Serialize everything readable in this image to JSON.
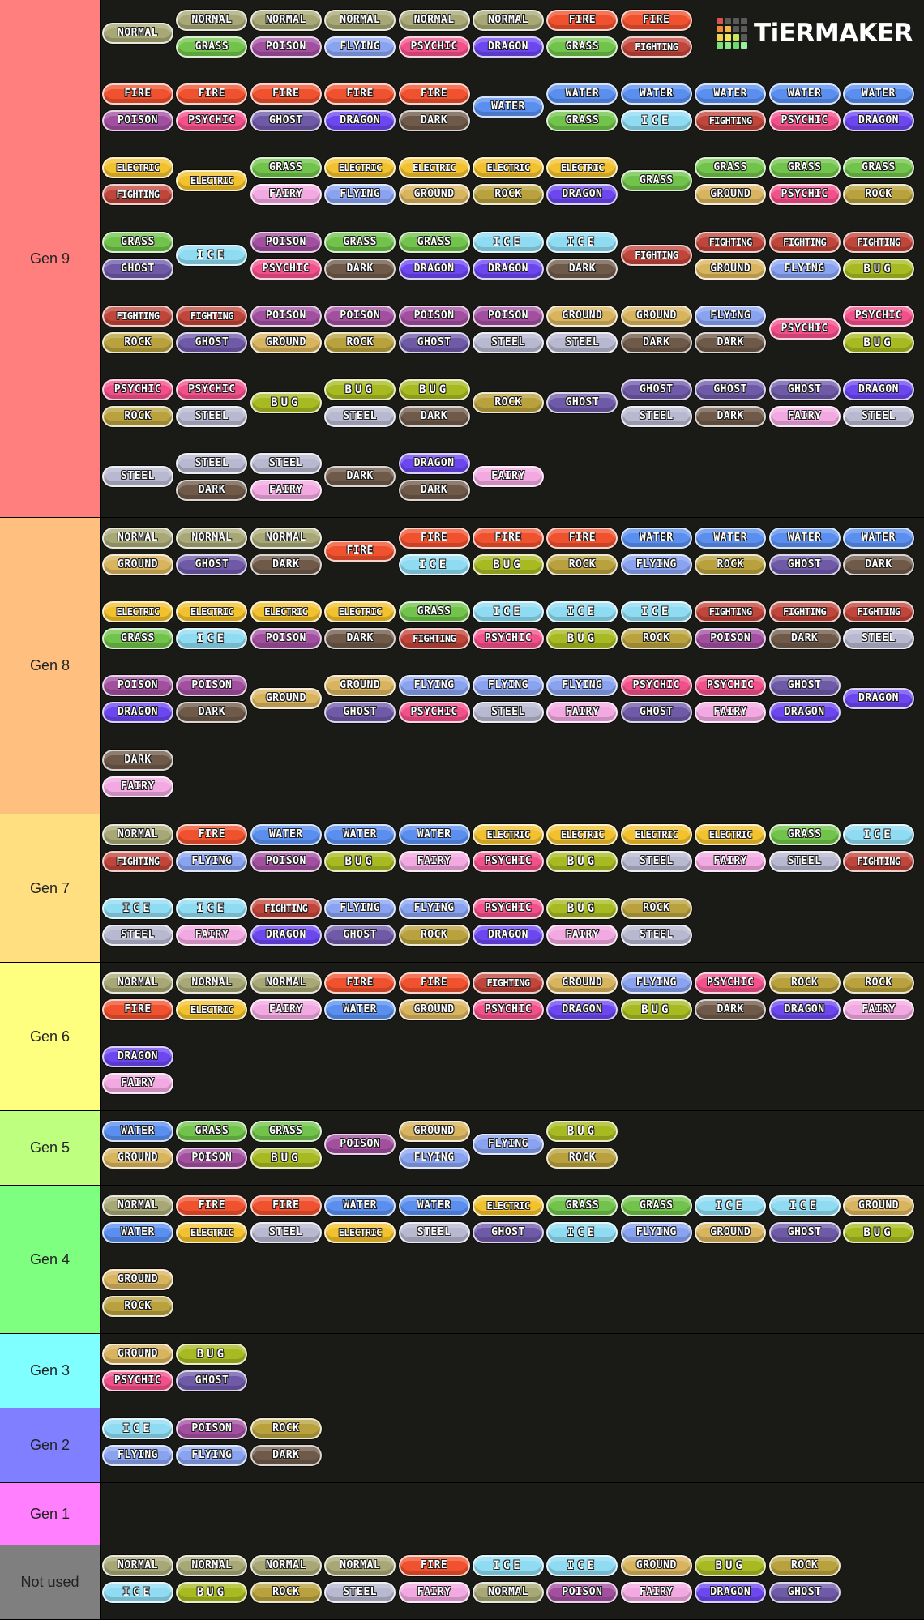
{
  "logo": {
    "text": "TiERMAKER",
    "grid_colors": [
      "#d9534f",
      "#5a5a5a",
      "#5a5a5a",
      "#5a5a5a",
      "#ef8a3a",
      "#f0b84a",
      "#5a5a5a",
      "#5a5a5a",
      "#f2d24a",
      "#f5e35a",
      "#c5e85a",
      "#5a5a5a",
      "#7de07a",
      "#8ce88a",
      "#6fd86f",
      "#9af09a"
    ]
  },
  "type_colors": {
    "NORMAL": "#a8a877",
    "FIRE": "#f0512e",
    "WATER": "#5a8fef",
    "ELECTRIC": "#f2c22e",
    "GRASS": "#72c34b",
    "ICE": "#8fdcf2",
    "FIGHTING": "#c0453b",
    "POISON": "#a24fa0",
    "GROUND": "#d9b45f",
    "FLYING": "#8aa3f0",
    "PSYCHIC": "#f2508a",
    "BUG": "#a8ba22",
    "ROCK": "#b9a23e",
    "GHOST": "#6f5aa8",
    "DRAGON": "#6c47f0",
    "DARK": "#6f5a4a",
    "STEEL": "#b8b8d0",
    "FAIRY": "#f2a8e0"
  },
  "tiers": [
    {
      "label": "Gen 9",
      "color": "#ff7f7f",
      "items": [
        [
          "NORMAL"
        ],
        [
          "NORMAL",
          "GRASS"
        ],
        [
          "NORMAL",
          "POISON"
        ],
        [
          "NORMAL",
          "FLYING"
        ],
        [
          "NORMAL",
          "PSYCHIC"
        ],
        [
          "NORMAL",
          "DRAGON"
        ],
        [
          "FIRE",
          "GRASS"
        ],
        [
          "FIRE",
          "FIGHTING"
        ],
        [
          "FIRE",
          "POISON"
        ],
        [
          "FIRE",
          "PSYCHIC"
        ],
        [
          "FIRE",
          "GHOST"
        ],
        [
          "FIRE",
          "DRAGON"
        ],
        [
          "FIRE",
          "DARK"
        ],
        [
          "WATER"
        ],
        [
          "WATER",
          "GRASS"
        ],
        [
          "WATER",
          "ICE"
        ],
        [
          "WATER",
          "FIGHTING"
        ],
        [
          "WATER",
          "PSYCHIC"
        ],
        [
          "WATER",
          "DRAGON"
        ],
        [
          "ELECTRIC",
          "FIGHTING"
        ],
        [
          "ELECTRIC"
        ],
        [
          "GRASS",
          "FAIRY"
        ],
        [
          "ELECTRIC",
          "FLYING"
        ],
        [
          "ELECTRIC",
          "GROUND"
        ],
        [
          "ELECTRIC",
          "ROCK"
        ],
        [
          "ELECTRIC",
          "DRAGON"
        ],
        [
          "GRASS"
        ],
        [
          "GRASS",
          "GROUND"
        ],
        [
          "GRASS",
          "PSYCHIC"
        ],
        [
          "GRASS",
          "ROCK"
        ],
        [
          "GRASS",
          "GHOST"
        ],
        [
          "ICE"
        ],
        [
          "POISON",
          "PSYCHIC"
        ],
        [
          "GRASS",
          "DARK"
        ],
        [
          "GRASS",
          "DRAGON"
        ],
        [
          "ICE",
          "DRAGON"
        ],
        [
          "ICE",
          "DARK"
        ],
        [
          "FIGHTING"
        ],
        [
          "FIGHTING",
          "GROUND"
        ],
        [
          "FIGHTING",
          "FLYING"
        ],
        [
          "FIGHTING",
          "BUG"
        ],
        [
          "FIGHTING",
          "ROCK"
        ],
        [
          "FIGHTING",
          "GHOST"
        ],
        [
          "POISON",
          "GROUND"
        ],
        [
          "POISON",
          "ROCK"
        ],
        [
          "POISON",
          "GHOST"
        ],
        [
          "POISON",
          "STEEL"
        ],
        [
          "GROUND",
          "STEEL"
        ],
        [
          "GROUND",
          "DARK"
        ],
        [
          "FLYING",
          "DARK"
        ],
        [
          "PSYCHIC"
        ],
        [
          "PSYCHIC",
          "BUG"
        ],
        [
          "PSYCHIC",
          "ROCK"
        ],
        [
          "PSYCHIC",
          "STEEL"
        ],
        [
          "BUG"
        ],
        [
          "BUG",
          "STEEL"
        ],
        [
          "BUG",
          "DARK"
        ],
        [
          "ROCK"
        ],
        [
          "GHOST"
        ],
        [
          "GHOST",
          "STEEL"
        ],
        [
          "GHOST",
          "DARK"
        ],
        [
          "GHOST",
          "FAIRY"
        ],
        [
          "DRAGON",
          "STEEL"
        ],
        [
          "STEEL"
        ],
        [
          "STEEL",
          "DARK"
        ],
        [
          "STEEL",
          "FAIRY"
        ],
        [
          "DARK"
        ],
        [
          "DRAGON",
          "DARK"
        ],
        [
          "FAIRY"
        ]
      ]
    },
    {
      "label": "Gen 8",
      "color": "#ffbf7f",
      "items": [
        [
          "NORMAL",
          "GROUND"
        ],
        [
          "NORMAL",
          "GHOST"
        ],
        [
          "NORMAL",
          "DARK"
        ],
        [
          "FIRE"
        ],
        [
          "FIRE",
          "ICE"
        ],
        [
          "FIRE",
          "BUG"
        ],
        [
          "FIRE",
          "ROCK"
        ],
        [
          "WATER",
          "FLYING"
        ],
        [
          "WATER",
          "ROCK"
        ],
        [
          "WATER",
          "GHOST"
        ],
        [
          "WATER",
          "DARK"
        ],
        [
          "ELECTRIC",
          "GRASS"
        ],
        [
          "ELECTRIC",
          "ICE"
        ],
        [
          "ELECTRIC",
          "POISON"
        ],
        [
          "ELECTRIC",
          "DARK"
        ],
        [
          "GRASS",
          "FIGHTING"
        ],
        [
          "ICE",
          "PSYCHIC"
        ],
        [
          "ICE",
          "BUG"
        ],
        [
          "ICE",
          "ROCK"
        ],
        [
          "FIGHTING",
          "POISON"
        ],
        [
          "FIGHTING",
          "DARK"
        ],
        [
          "FIGHTING",
          "STEEL"
        ],
        [
          "POISON",
          "DRAGON"
        ],
        [
          "POISON",
          "DARK"
        ],
        [
          "GROUND"
        ],
        [
          "GROUND",
          "GHOST"
        ],
        [
          "FLYING",
          "PSYCHIC"
        ],
        [
          "FLYING",
          "STEEL"
        ],
        [
          "FLYING",
          "FAIRY"
        ],
        [
          "PSYCHIC",
          "GHOST"
        ],
        [
          "PSYCHIC",
          "FAIRY"
        ],
        [
          "GHOST",
          "DRAGON"
        ],
        [
          "DRAGON"
        ],
        [
          "DARK",
          "FAIRY"
        ]
      ]
    },
    {
      "label": "Gen 7",
      "color": "#ffdf7f",
      "items": [
        [
          "NORMAL",
          "FIGHTING"
        ],
        [
          "FIRE",
          "FLYING"
        ],
        [
          "WATER",
          "POISON"
        ],
        [
          "WATER",
          "BUG"
        ],
        [
          "WATER",
          "FAIRY"
        ],
        [
          "ELECTRIC",
          "PSYCHIC"
        ],
        [
          "ELECTRIC",
          "BUG"
        ],
        [
          "ELECTRIC",
          "STEEL"
        ],
        [
          "ELECTRIC",
          "FAIRY"
        ],
        [
          "GRASS",
          "STEEL"
        ],
        [
          "ICE",
          "FIGHTING"
        ],
        [
          "ICE",
          "STEEL"
        ],
        [
          "ICE",
          "FAIRY"
        ],
        [
          "FIGHTING",
          "DRAGON"
        ],
        [
          "FLYING",
          "GHOST"
        ],
        [
          "FLYING",
          "ROCK"
        ],
        [
          "PSYCHIC",
          "DRAGON"
        ],
        [
          "BUG",
          "FAIRY"
        ],
        [
          "ROCK",
          "STEEL"
        ]
      ]
    },
    {
      "label": "Gen 6",
      "color": "#ffff7f",
      "items": [
        [
          "NORMAL",
          "FIRE"
        ],
        [
          "NORMAL",
          "ELECTRIC"
        ],
        [
          "NORMAL",
          "FAIRY"
        ],
        [
          "FIRE",
          "WATER"
        ],
        [
          "FIRE",
          "GROUND"
        ],
        [
          "FIGHTING",
          "PSYCHIC"
        ],
        [
          "GROUND",
          "DRAGON"
        ],
        [
          "FLYING",
          "BUG"
        ],
        [
          "PSYCHIC",
          "DARK"
        ],
        [
          "ROCK",
          "DRAGON"
        ],
        [
          "ROCK",
          "FAIRY"
        ],
        [
          "DRAGON",
          "FAIRY"
        ]
      ]
    },
    {
      "label": "Gen 5",
      "color": "#bfff7f",
      "items": [
        [
          "WATER",
          "GROUND"
        ],
        [
          "GRASS",
          "POISON"
        ],
        [
          "GRASS",
          "BUG"
        ],
        [
          "POISON"
        ],
        [
          "GROUND",
          "FLYING"
        ],
        [
          "FLYING"
        ],
        [
          "BUG",
          "ROCK"
        ]
      ]
    },
    {
      "label": "Gen 4",
      "color": "#7fff7f",
      "items": [
        [
          "NORMAL",
          "WATER"
        ],
        [
          "FIRE",
          "ELECTRIC"
        ],
        [
          "FIRE",
          "STEEL"
        ],
        [
          "WATER",
          "ELECTRIC"
        ],
        [
          "WATER",
          "STEEL"
        ],
        [
          "ELECTRIC",
          "GHOST"
        ],
        [
          "GRASS",
          "ICE"
        ],
        [
          "GRASS",
          "FLYING"
        ],
        [
          "ICE",
          "GROUND"
        ],
        [
          "ICE",
          "GHOST"
        ],
        [
          "GROUND",
          "BUG"
        ],
        [
          "GROUND",
          "ROCK"
        ]
      ]
    },
    {
      "label": "Gen 3",
      "color": "#7fffff",
      "items": [
        [
          "GROUND",
          "PSYCHIC"
        ],
        [
          "BUG",
          "GHOST"
        ]
      ]
    },
    {
      "label": "Gen 2",
      "color": "#7f7fff",
      "items": [
        [
          "ICE",
          "FLYING"
        ],
        [
          "POISON",
          "FLYING"
        ],
        [
          "ROCK",
          "DARK"
        ]
      ]
    },
    {
      "label": "Gen 1",
      "color": "#ff7fff",
      "items": []
    },
    {
      "label": "Not used",
      "color": "#7f7f7f",
      "items": [
        [
          "NORMAL",
          "ICE"
        ],
        [
          "NORMAL",
          "BUG"
        ],
        [
          "NORMAL",
          "ROCK"
        ],
        [
          "NORMAL",
          "STEEL"
        ],
        [
          "FIRE",
          "FAIRY"
        ],
        [
          "ICE",
          "NORMAL"
        ],
        [
          "ICE",
          "POISON"
        ],
        [
          "GROUND",
          "FAIRY"
        ],
        [
          "BUG",
          "DRAGON"
        ],
        [
          "ROCK",
          "GHOST"
        ]
      ]
    }
  ]
}
